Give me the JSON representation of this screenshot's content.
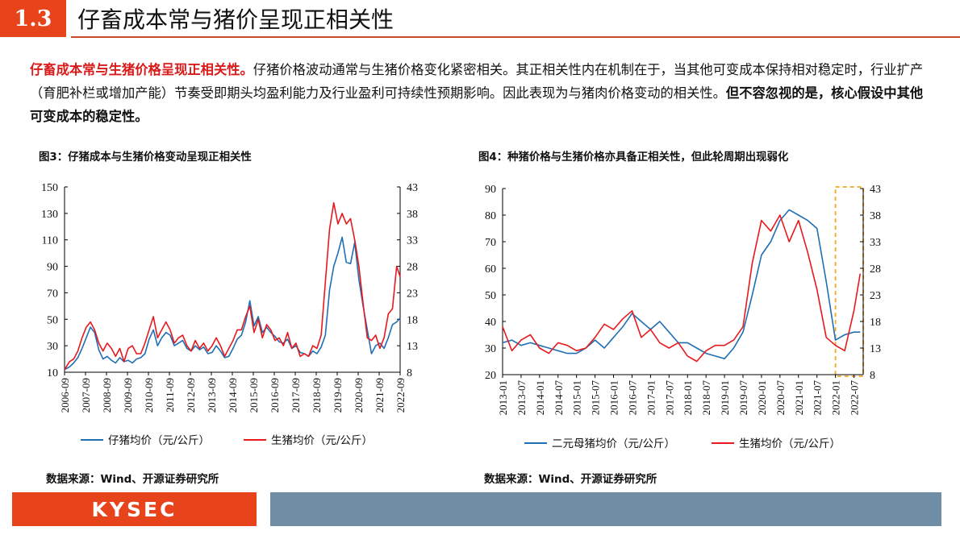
{
  "header": {
    "section_number": "1.3",
    "title": "仔畜成本常与猪价呈现正相关性"
  },
  "paragraph": {
    "lead": "仔畜成本常与生猪价格呈现正相关性。",
    "body": "仔猪价格波动通常与生猪价格变化紧密相关。其正相关性内在机制在于，当其他可变成本保持相对稳定时，行业扩产（育肥补栏或增加产能）节奏受即期头均盈利能力及行业盈利可持续性预期影响。因此表现为与猪肉价格变动的相关性。",
    "emphasis": "但不容忽视的是，核心假设中其他可变成本的稳定性。"
  },
  "colors": {
    "accent": "#e8441c",
    "series_blue": "#1f6fb5",
    "series_red": "#e8191e",
    "footer_bar": "#6f8ea6",
    "highlight_box": "#f5a623"
  },
  "chart_data": [
    {
      "type": "line",
      "title": "图3：仔猪成本与生猪价格变动呈现正相关性",
      "x_ticks": [
        "2006-09",
        "2007-09",
        "2008-09",
        "2009-09",
        "2010-09",
        "2011-09",
        "2012-09",
        "2013-09",
        "2014-09",
        "2015-09",
        "2016-09",
        "2017-09",
        "2018-09",
        "2019-09",
        "2020-09",
        "2021-09",
        "2022-09"
      ],
      "xlim": [
        2006.667,
        2022.667
      ],
      "y_left": {
        "ticks": [
          10,
          30,
          50,
          70,
          90,
          110,
          130,
          150
        ],
        "lim": [
          10,
          150
        ]
      },
      "y_right": {
        "ticks": [
          8,
          13,
          18,
          23,
          28,
          33,
          38,
          43
        ],
        "lim": [
          8,
          43
        ]
      },
      "grid": false,
      "legend_position": "bottom",
      "series": [
        {
          "name": "仔猪均价（元/公斤）",
          "axis": "left",
          "color": "#1f6fb5",
          "x": [
            2006.67,
            2006.9,
            2007.1,
            2007.3,
            2007.5,
            2007.7,
            2007.9,
            2008.1,
            2008.3,
            2008.5,
            2008.7,
            2008.9,
            2009.1,
            2009.3,
            2009.5,
            2009.7,
            2009.9,
            2010.1,
            2010.3,
            2010.5,
            2010.7,
            2010.9,
            2011.1,
            2011.3,
            2011.5,
            2011.7,
            2011.9,
            2012.1,
            2012.3,
            2012.5,
            2012.7,
            2012.9,
            2013.1,
            2013.3,
            2013.5,
            2013.7,
            2013.9,
            2014.1,
            2014.3,
            2014.5,
            2014.7,
            2014.9,
            2015.1,
            2015.3,
            2015.5,
            2015.7,
            2015.9,
            2016.1,
            2016.3,
            2016.5,
            2016.7,
            2016.9,
            2017.1,
            2017.3,
            2017.5,
            2017.7,
            2017.9,
            2018.1,
            2018.3,
            2018.5,
            2018.7,
            2018.9,
            2019.1,
            2019.3,
            2019.5,
            2019.7,
            2019.9,
            2020.1,
            2020.3,
            2020.5,
            2020.7,
            2020.9,
            2021.1,
            2021.3,
            2021.5,
            2021.7,
            2021.9,
            2022.1,
            2022.3,
            2022.5,
            2022.67
          ],
          "y": [
            12,
            14,
            17,
            21,
            28,
            36,
            44,
            40,
            27,
            20,
            22,
            19,
            17,
            21,
            18,
            19,
            17,
            20,
            21,
            24,
            35,
            42,
            30,
            36,
            40,
            38,
            30,
            32,
            34,
            28,
            26,
            30,
            27,
            29,
            24,
            25,
            30,
            26,
            21,
            22,
            28,
            35,
            38,
            48,
            64,
            45,
            52,
            40,
            44,
            40,
            37,
            33,
            32,
            35,
            28,
            30,
            25,
            24,
            22,
            26,
            24,
            29,
            38,
            72,
            90,
            100,
            112,
            93,
            92,
            108,
            80,
            60,
            42,
            24,
            30,
            32,
            28,
            36,
            46,
            48,
            51
          ]
        },
        {
          "name": "生猪均价（元/公斤）",
          "axis": "right",
          "color": "#e8191e",
          "x": [
            2006.67,
            2006.9,
            2007.1,
            2007.3,
            2007.5,
            2007.7,
            2007.9,
            2008.1,
            2008.3,
            2008.5,
            2008.7,
            2008.9,
            2009.1,
            2009.3,
            2009.5,
            2009.7,
            2009.9,
            2010.1,
            2010.3,
            2010.5,
            2010.7,
            2010.9,
            2011.1,
            2011.3,
            2011.5,
            2011.7,
            2011.9,
            2012.1,
            2012.3,
            2012.5,
            2012.7,
            2012.9,
            2013.1,
            2013.3,
            2013.5,
            2013.7,
            2013.9,
            2014.1,
            2014.3,
            2014.5,
            2014.7,
            2014.9,
            2015.1,
            2015.3,
            2015.5,
            2015.7,
            2015.9,
            2016.1,
            2016.3,
            2016.5,
            2016.7,
            2016.9,
            2017.1,
            2017.3,
            2017.5,
            2017.7,
            2017.9,
            2018.1,
            2018.3,
            2018.5,
            2018.7,
            2018.9,
            2019.1,
            2019.3,
            2019.5,
            2019.7,
            2019.9,
            2020.1,
            2020.3,
            2020.5,
            2020.7,
            2020.9,
            2021.1,
            2021.3,
            2021.5,
            2021.7,
            2021.9,
            2022.1,
            2022.3,
            2022.5,
            2022.67
          ],
          "y": [
            8.5,
            10,
            10.5,
            12,
            14.5,
            16.5,
            17.5,
            16,
            13.5,
            12,
            13.5,
            12.5,
            11,
            12.5,
            10,
            12.5,
            13,
            11.5,
            11.5,
            13.5,
            16,
            18.5,
            14.5,
            16,
            17.5,
            16,
            13.5,
            14.5,
            15,
            13,
            12,
            14,
            12.5,
            13.5,
            12,
            13,
            14.5,
            13,
            11,
            12.5,
            14,
            16,
            16,
            18.5,
            20.5,
            15.5,
            18,
            14.5,
            17,
            16,
            14,
            14.5,
            13,
            15.5,
            12.5,
            13.5,
            11,
            11.5,
            11,
            13,
            12.5,
            15,
            25,
            35,
            40,
            36,
            38,
            36,
            37,
            33,
            28,
            21,
            14.5,
            14,
            15,
            12.5,
            14.5,
            19,
            20,
            28,
            26
          ]
        }
      ]
    },
    {
      "type": "line",
      "title": "图4：种猪价格与生猪价格亦具备正相关性，但此轮周期出现弱化",
      "x_ticks": [
        "2013-01",
        "2013-07",
        "2014-01",
        "2014-07",
        "2015-01",
        "2015-07",
        "2016-01",
        "2016-07",
        "2017-01",
        "2017-07",
        "2018-01",
        "2018-07",
        "2019-01",
        "2019-07",
        "2020-01",
        "2020-07",
        "2021-01",
        "2021-07",
        "2022-01",
        "2022-07"
      ],
      "xlim": [
        2013.0,
        2022.75
      ],
      "y_left": {
        "ticks": [
          20,
          30,
          40,
          50,
          60,
          70,
          80,
          90
        ],
        "lim": [
          20,
          90
        ]
      },
      "y_right": {
        "ticks": [
          8,
          13,
          18,
          23,
          28,
          33,
          38,
          43
        ],
        "lim": [
          8,
          43
        ]
      },
      "grid": false,
      "legend_position": "bottom",
      "highlight": {
        "from": "2022-01",
        "to": "2022-09",
        "style": "dashed orange box"
      },
      "series": [
        {
          "name": "二元母猪均价（元/公斤）",
          "axis": "left",
          "color": "#1f6fb5",
          "x": [
            2013.0,
            2013.25,
            2013.5,
            2013.75,
            2014.0,
            2014.25,
            2014.5,
            2014.75,
            2015.0,
            2015.25,
            2015.5,
            2015.75,
            2016.0,
            2016.25,
            2016.5,
            2016.75,
            2017.0,
            2017.25,
            2017.5,
            2017.75,
            2018.0,
            2018.25,
            2018.5,
            2018.75,
            2019.0,
            2019.25,
            2019.5,
            2019.75,
            2020.0,
            2020.25,
            2020.5,
            2020.75,
            2021.0,
            2021.25,
            2021.5,
            2021.75,
            2022.0,
            2022.25,
            2022.5,
            2022.67
          ],
          "y": [
            32,
            33,
            31,
            32,
            31,
            30,
            29,
            28,
            28,
            30,
            33,
            30,
            34,
            38,
            43,
            40,
            37,
            40,
            36,
            32,
            32,
            30,
            28,
            27,
            26,
            30,
            36,
            50,
            65,
            70,
            78,
            82,
            80,
            78,
            75,
            55,
            33,
            35,
            36,
            36
          ]
        },
        {
          "name": "生猪均价（元/公斤）",
          "axis": "right",
          "color": "#e8191e",
          "x": [
            2013.0,
            2013.25,
            2013.5,
            2013.75,
            2014.0,
            2014.25,
            2014.5,
            2014.75,
            2015.0,
            2015.25,
            2015.5,
            2015.75,
            2016.0,
            2016.25,
            2016.5,
            2016.75,
            2017.0,
            2017.25,
            2017.5,
            2017.75,
            2018.0,
            2018.25,
            2018.5,
            2018.75,
            2019.0,
            2019.25,
            2019.5,
            2019.75,
            2020.0,
            2020.25,
            2020.5,
            2020.75,
            2021.0,
            2021.25,
            2021.5,
            2021.75,
            2022.0,
            2022.25,
            2022.5,
            2022.67
          ],
          "y": [
            17,
            12.5,
            14.5,
            15.5,
            13,
            12,
            14,
            13.5,
            12.5,
            13,
            15,
            17.5,
            16.5,
            18.5,
            20,
            15,
            16.5,
            14,
            13,
            14,
            11.5,
            10.5,
            12.5,
            13.5,
            13.5,
            14.5,
            17,
            29,
            37,
            35,
            38,
            33,
            37,
            31,
            24,
            15,
            13.5,
            12.5,
            20,
            27
          ]
        }
      ]
    }
  ],
  "source_left": "数据来源：Wind、开源证券研究所",
  "source_right": "数据来源：Wind、开源证券研究所",
  "footer": {
    "logo_text": "KYSEC"
  }
}
